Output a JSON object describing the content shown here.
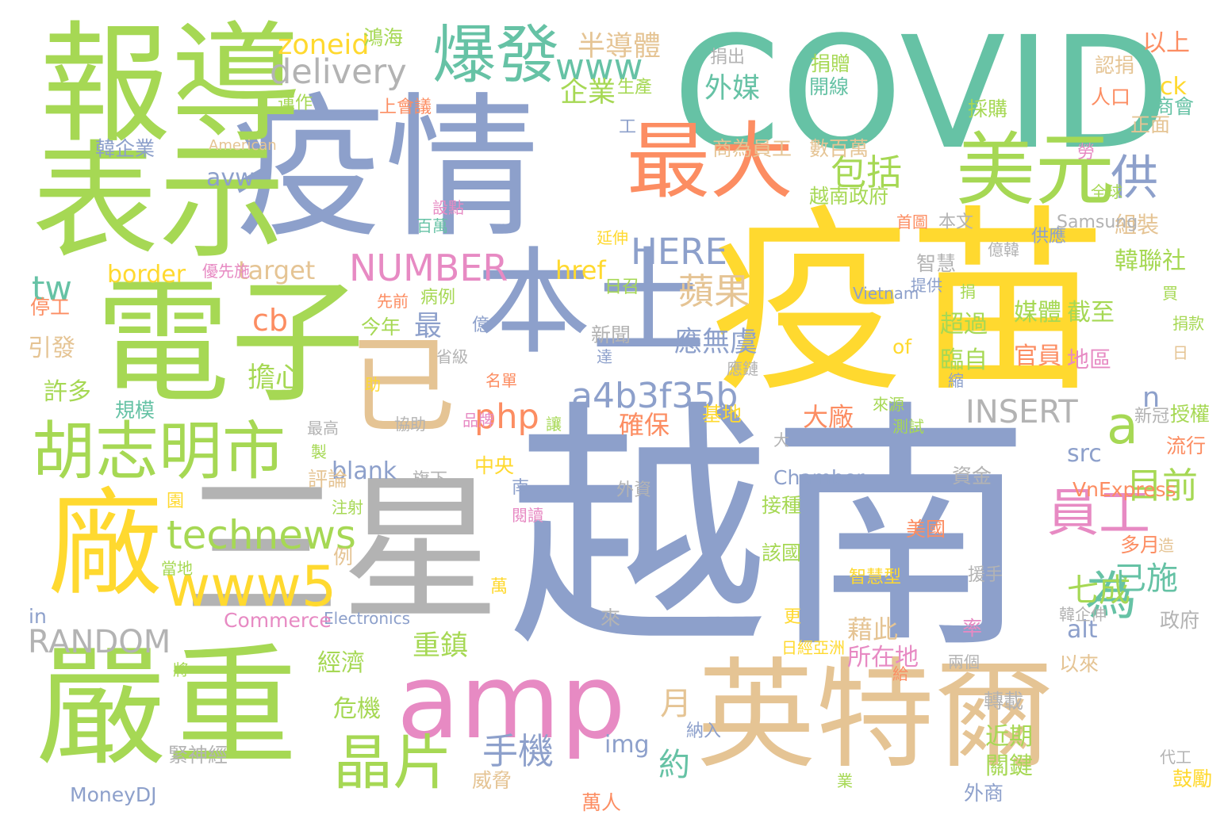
{
  "palette": {
    "green": "#66c2a5",
    "orange": "#fc8d62",
    "blue": "#8da0cb",
    "pink": "#e78ac3",
    "lime": "#a6d854",
    "yellow": "#ffd92f",
    "tan": "#e5c494",
    "gray": "#b3b3b3"
  },
  "words": [
    {
      "text": "越南",
      "color": "blue"
    },
    {
      "text": "疫苗",
      "color": "yellow"
    },
    {
      "text": "COVID",
      "color": "green"
    },
    {
      "text": "疫情",
      "color": "blue"
    },
    {
      "text": "三星",
      "color": "gray"
    },
    {
      "text": "電子",
      "color": "lime"
    },
    {
      "text": "表示",
      "color": "lime"
    },
    {
      "text": "報導",
      "color": "lime"
    },
    {
      "text": "英特爾",
      "color": "tan"
    },
    {
      "text": "嚴重",
      "color": "lime"
    },
    {
      "text": "本土",
      "color": "blue"
    },
    {
      "text": "廠",
      "color": "yellow"
    },
    {
      "text": "amp",
      "color": "pink"
    },
    {
      "text": "最大",
      "color": "orange"
    },
    {
      "text": "美元",
      "color": "lime"
    },
    {
      "text": "已",
      "color": "tan"
    },
    {
      "text": "胡志明市",
      "color": "lime"
    },
    {
      "text": "爆發",
      "color": "green"
    },
    {
      "text": "www5",
      "color": "yellow"
    },
    {
      "text": "員工",
      "color": "pink"
    },
    {
      "text": "晶片",
      "color": "lime"
    },
    {
      "text": "technews",
      "color": "lime"
    },
    {
      "text": "a4b3f35b",
      "color": "blue"
    },
    {
      "text": "為",
      "color": "green"
    },
    {
      "text": "供",
      "color": "blue"
    },
    {
      "text": "a",
      "color": "lime"
    },
    {
      "text": "www",
      "color": "green"
    },
    {
      "text": "delivery",
      "color": "gray"
    },
    {
      "text": "NUMBER",
      "color": "pink"
    },
    {
      "text": "HERE",
      "color": "blue"
    },
    {
      "text": "包括",
      "color": "lime"
    },
    {
      "text": "INSERT",
      "color": "gray"
    },
    {
      "text": "RANDOM",
      "color": "gray"
    },
    {
      "text": "蘋果",
      "color": "tan"
    },
    {
      "text": "php",
      "color": "orange"
    },
    {
      "text": "手機",
      "color": "blue"
    },
    {
      "text": "目前",
      "color": "lime"
    },
    {
      "text": "最",
      "color": "blue"
    },
    {
      "text": "tw",
      "color": "green"
    },
    {
      "text": "cb",
      "color": "orange"
    },
    {
      "text": "月",
      "color": "tan"
    },
    {
      "text": "約",
      "color": "green"
    },
    {
      "text": "七成",
      "color": "lime"
    },
    {
      "text": "已施",
      "color": "green"
    },
    {
      "text": "半導體",
      "color": "tan"
    },
    {
      "text": "外媒",
      "color": "green"
    },
    {
      "text": "企業",
      "color": "lime"
    },
    {
      "text": "zoneid",
      "color": "yellow"
    },
    {
      "text": "target",
      "color": "tan"
    },
    {
      "text": "border",
      "color": "yellow"
    },
    {
      "text": "avw",
      "color": "blue"
    },
    {
      "text": "href",
      "color": "yellow"
    },
    {
      "text": "blank",
      "color": "blue"
    },
    {
      "text": "src",
      "color": "blue"
    },
    {
      "text": "alt",
      "color": "blue"
    },
    {
      "text": "img",
      "color": "blue"
    },
    {
      "text": "n",
      "color": "blue"
    },
    {
      "text": "ck",
      "color": "yellow"
    },
    {
      "text": "擔心",
      "color": "lime"
    },
    {
      "text": "應無虞",
      "color": "blue"
    },
    {
      "text": "大廠",
      "color": "orange"
    },
    {
      "text": "確保",
      "color": "orange"
    },
    {
      "text": "重鎮",
      "color": "lime"
    },
    {
      "text": "藉此",
      "color": "tan"
    },
    {
      "text": "所在地",
      "color": "pink"
    },
    {
      "text": "經濟",
      "color": "lime"
    },
    {
      "text": "危機",
      "color": "lime"
    },
    {
      "text": "近期",
      "color": "lime"
    },
    {
      "text": "關鍵",
      "color": "lime"
    },
    {
      "text": "媒體",
      "color": "lime"
    },
    {
      "text": "截至",
      "color": "lime"
    },
    {
      "text": "官員",
      "color": "orange"
    },
    {
      "text": "地區",
      "color": "pink"
    },
    {
      "text": "臨自",
      "color": "lime"
    },
    {
      "text": "超過",
      "color": "lime"
    },
    {
      "text": "韓聯社",
      "color": "lime"
    },
    {
      "text": "組裝",
      "color": "tan"
    },
    {
      "text": "以上",
      "color": "orange"
    },
    {
      "text": "商會",
      "color": "green"
    },
    {
      "text": "正面",
      "color": "tan"
    },
    {
      "text": "人口",
      "color": "orange"
    },
    {
      "text": "認捐",
      "color": "tan"
    },
    {
      "text": "越南政府",
      "color": "lime"
    },
    {
      "text": "開線",
      "color": "green"
    },
    {
      "text": "捐贈",
      "color": "lime"
    },
    {
      "text": "捐出",
      "color": "gray"
    },
    {
      "text": "生產",
      "color": "lime"
    },
    {
      "text": "鴻海",
      "color": "lime"
    },
    {
      "text": "運作",
      "color": "lime"
    },
    {
      "text": "上會議",
      "color": "orange"
    },
    {
      "text": "韓企業",
      "color": "blue"
    },
    {
      "text": "American",
      "color": "tan"
    },
    {
      "text": "商為員工",
      "color": "tan"
    },
    {
      "text": "數百萬",
      "color": "tan"
    },
    {
      "text": "採購",
      "color": "lime"
    },
    {
      "text": "勞",
      "color": "pink"
    },
    {
      "text": "全球",
      "color": "lime"
    },
    {
      "text": "本文",
      "color": "gray"
    },
    {
      "text": "Samsung",
      "color": "gray"
    },
    {
      "text": "首圖",
      "color": "orange"
    },
    {
      "text": "延伸",
      "color": "yellow"
    },
    {
      "text": "供應",
      "color": "blue"
    },
    {
      "text": "億韓",
      "color": "gray"
    },
    {
      "text": "智慧",
      "color": "gray"
    },
    {
      "text": "Vietnam",
      "color": "blue"
    },
    {
      "text": "提供",
      "color": "blue"
    },
    {
      "text": "捐",
      "color": "lime"
    },
    {
      "text": "買",
      "color": "lime"
    },
    {
      "text": "捐款",
      "color": "lime"
    },
    {
      "text": "日",
      "color": "tan"
    },
    {
      "text": "縮",
      "color": "blue"
    },
    {
      "text": "新冠",
      "color": "gray"
    },
    {
      "text": "授權",
      "color": "lime"
    },
    {
      "text": "流行",
      "color": "orange"
    },
    {
      "text": "測試",
      "color": "lime"
    },
    {
      "text": "來源",
      "color": "lime"
    },
    {
      "text": "大",
      "color": "gray"
    },
    {
      "text": "資金",
      "color": "gray"
    },
    {
      "text": "Chamber",
      "color": "blue"
    },
    {
      "text": "VnExpress",
      "color": "orange"
    },
    {
      "text": "美國",
      "color": "orange"
    },
    {
      "text": "多月",
      "color": "orange"
    },
    {
      "text": "造",
      "color": "tan"
    },
    {
      "text": "援手",
      "color": "gray"
    },
    {
      "text": "智慧型",
      "color": "yellow"
    },
    {
      "text": "韓企伸",
      "color": "gray"
    },
    {
      "text": "政府",
      "color": "gray"
    },
    {
      "text": "率",
      "color": "pink"
    },
    {
      "text": "以來",
      "color": "tan"
    },
    {
      "text": "兩個",
      "color": "gray"
    },
    {
      "text": "給",
      "color": "orange"
    },
    {
      "text": "轉載",
      "color": "gray"
    },
    {
      "text": "代工",
      "color": "gray"
    },
    {
      "text": "鼓勵",
      "color": "yellow"
    },
    {
      "text": "業",
      "color": "lime"
    },
    {
      "text": "外商",
      "color": "blue"
    },
    {
      "text": "萬人",
      "color": "orange"
    },
    {
      "text": "Electronics",
      "color": "blue"
    },
    {
      "text": "MoneyDJ",
      "color": "blue"
    },
    {
      "text": "in",
      "color": "blue"
    },
    {
      "text": "Commerce",
      "color": "pink"
    },
    {
      "text": "日經亞洲",
      "color": "yellow"
    },
    {
      "text": "更",
      "color": "yellow"
    },
    {
      "text": "來",
      "color": "gray"
    },
    {
      "text": "納入",
      "color": "blue"
    },
    {
      "text": "威脅",
      "color": "tan"
    },
    {
      "text": "緊神經",
      "color": "gray"
    },
    {
      "text": "將",
      "color": "lime"
    },
    {
      "text": "萬",
      "color": "yellow"
    },
    {
      "text": "例",
      "color": "tan"
    },
    {
      "text": "當地",
      "color": "lime"
    },
    {
      "text": "閱讀",
      "color": "pink"
    },
    {
      "text": "該國",
      "color": "lime"
    },
    {
      "text": "接種",
      "color": "lime"
    },
    {
      "text": "注射",
      "color": "lime"
    },
    {
      "text": "園",
      "color": "yellow"
    },
    {
      "text": "南",
      "color": "blue"
    },
    {
      "text": "外資",
      "color": "gray"
    },
    {
      "text": "旗下",
      "color": "gray"
    },
    {
      "text": "中央",
      "color": "yellow"
    },
    {
      "text": "評論",
      "color": "tan"
    },
    {
      "text": "製",
      "color": "lime"
    },
    {
      "text": "最高",
      "color": "gray"
    },
    {
      "text": "協助",
      "color": "gray"
    },
    {
      "text": "讓",
      "color": "lime"
    },
    {
      "text": "助",
      "color": "yellow"
    },
    {
      "text": "應鏈",
      "color": "gray"
    },
    {
      "text": "基地",
      "color": "yellow"
    },
    {
      "text": "名單",
      "color": "orange"
    },
    {
      "text": "省級",
      "color": "gray"
    },
    {
      "text": "品牌",
      "color": "pink"
    },
    {
      "text": "達",
      "color": "blue"
    },
    {
      "text": "新聞",
      "color": "gray"
    },
    {
      "text": "日召",
      "color": "lime"
    },
    {
      "text": "億",
      "color": "blue"
    },
    {
      "text": "病例",
      "color": "lime"
    },
    {
      "text": "今年",
      "color": "lime"
    },
    {
      "text": "先前",
      "color": "orange"
    },
    {
      "text": "規模",
      "color": "green"
    },
    {
      "text": "許多",
      "color": "lime"
    },
    {
      "text": "引發",
      "color": "tan"
    },
    {
      "text": "停工",
      "color": "orange"
    },
    {
      "text": "優先施",
      "color": "pink"
    },
    {
      "text": "百萬",
      "color": "green"
    },
    {
      "text": "設點",
      "color": "pink"
    },
    {
      "text": "of",
      "color": "yellow"
    },
    {
      "text": "工",
      "color": "blue"
    },
    {
      "text": "據",
      "color": "blue"
    }
  ]
}
